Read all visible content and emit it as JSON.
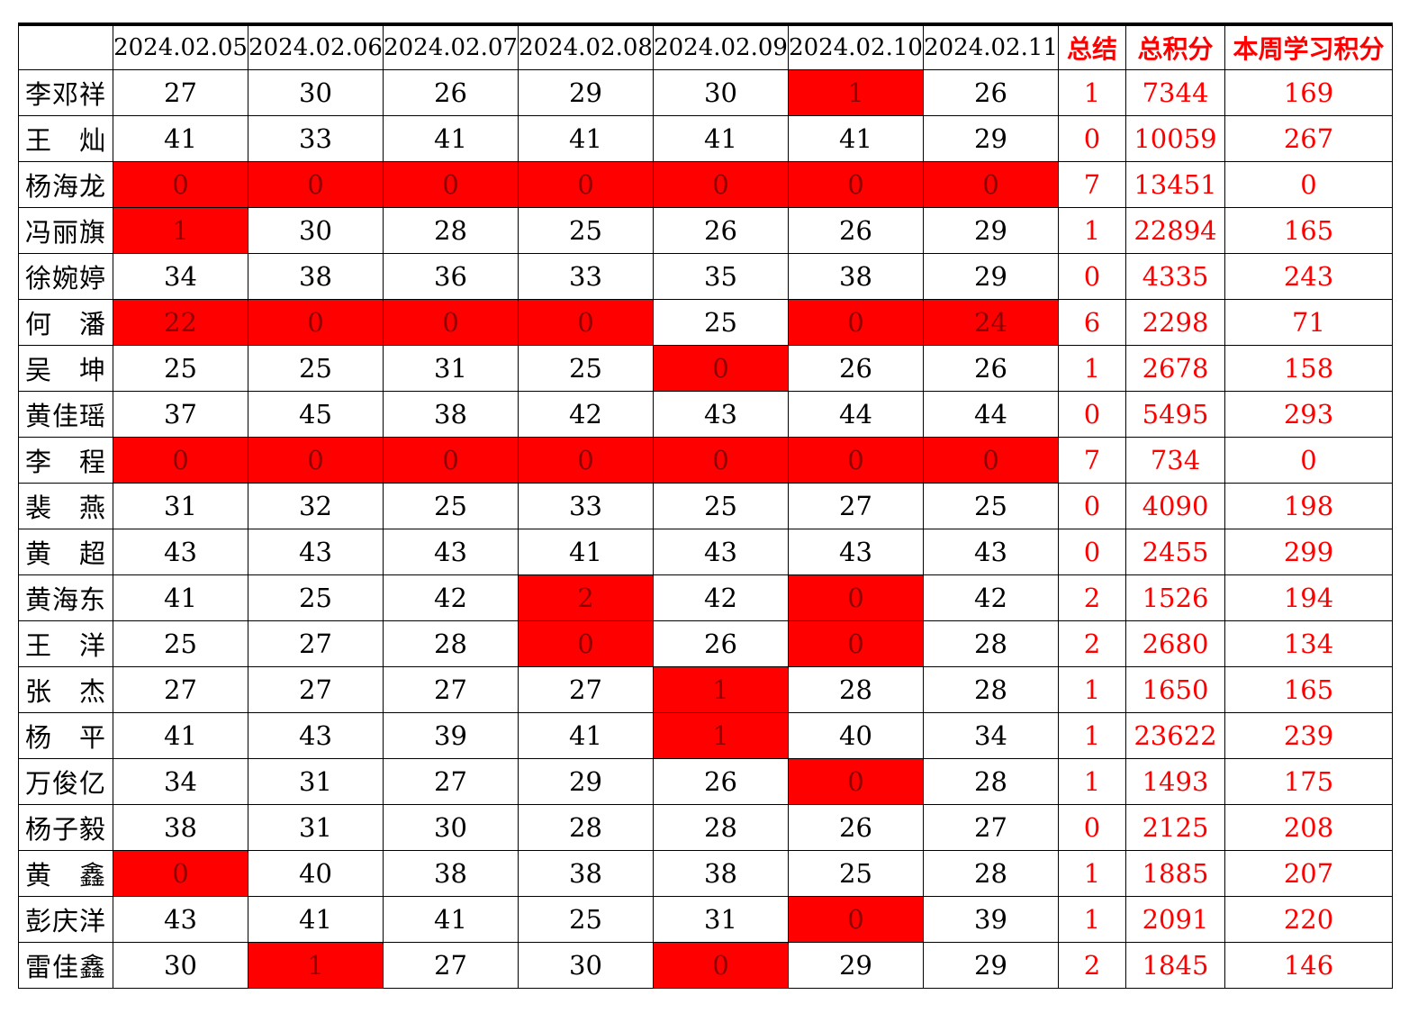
{
  "table": {
    "corner_label": "",
    "date_columns": [
      "2024.02.05",
      "2024.02.06",
      "2024.02.07",
      "2024.02.08",
      "2024.02.09",
      "2024.02.10",
      "2024.02.11"
    ],
    "summary_columns": [
      "总结",
      "总积分",
      "本周学习积分"
    ],
    "colors": {
      "highlight_bg": "#ff0000",
      "highlight_text": "#8b0000",
      "summary_text": "#ff0000",
      "body_text": "#000000",
      "grid": "#000000"
    },
    "rows": [
      {
        "name": "李邓祥",
        "daily": [
          27,
          30,
          26,
          29,
          30,
          1,
          26
        ],
        "highlight": [
          false,
          false,
          false,
          false,
          false,
          true,
          false
        ],
        "summary": 1,
        "total": 7344,
        "week": 169
      },
      {
        "name": "王　灿",
        "daily": [
          41,
          33,
          41,
          41,
          41,
          41,
          29
        ],
        "highlight": [
          false,
          false,
          false,
          false,
          false,
          false,
          false
        ],
        "summary": 0,
        "total": 10059,
        "week": 267
      },
      {
        "name": "杨海龙",
        "daily": [
          0,
          0,
          0,
          0,
          0,
          0,
          0
        ],
        "highlight": [
          true,
          true,
          true,
          true,
          true,
          true,
          true
        ],
        "summary": 7,
        "total": 13451,
        "week": 0
      },
      {
        "name": "冯丽旗",
        "daily": [
          1,
          30,
          28,
          25,
          26,
          26,
          29
        ],
        "highlight": [
          true,
          false,
          false,
          false,
          false,
          false,
          false
        ],
        "summary": 1,
        "total": 22894,
        "week": 165
      },
      {
        "name": "徐婉婷",
        "daily": [
          34,
          38,
          36,
          33,
          35,
          38,
          29
        ],
        "highlight": [
          false,
          false,
          false,
          false,
          false,
          false,
          false
        ],
        "summary": 0,
        "total": 4335,
        "week": 243
      },
      {
        "name": "何　潘",
        "daily": [
          22,
          0,
          0,
          0,
          25,
          0,
          24
        ],
        "highlight": [
          true,
          true,
          true,
          true,
          false,
          true,
          true
        ],
        "summary": 6,
        "total": 2298,
        "week": 71
      },
      {
        "name": "吴　坤",
        "daily": [
          25,
          25,
          31,
          25,
          0,
          26,
          26
        ],
        "highlight": [
          false,
          false,
          false,
          false,
          true,
          false,
          false
        ],
        "summary": 1,
        "total": 2678,
        "week": 158
      },
      {
        "name": "黄佳瑶",
        "daily": [
          37,
          45,
          38,
          42,
          43,
          44,
          44
        ],
        "highlight": [
          false,
          false,
          false,
          false,
          false,
          false,
          false
        ],
        "summary": 0,
        "total": 5495,
        "week": 293
      },
      {
        "name": "李　程",
        "daily": [
          0,
          0,
          0,
          0,
          0,
          0,
          0
        ],
        "highlight": [
          true,
          true,
          true,
          true,
          true,
          true,
          true
        ],
        "summary": 7,
        "total": 734,
        "week": 0
      },
      {
        "name": "裴　燕",
        "daily": [
          31,
          32,
          25,
          33,
          25,
          27,
          25
        ],
        "highlight": [
          false,
          false,
          false,
          false,
          false,
          false,
          false
        ],
        "summary": 0,
        "total": 4090,
        "week": 198
      },
      {
        "name": "黄　超",
        "daily": [
          43,
          43,
          43,
          41,
          43,
          43,
          43
        ],
        "highlight": [
          false,
          false,
          false,
          false,
          false,
          false,
          false
        ],
        "summary": 0,
        "total": 2455,
        "week": 299
      },
      {
        "name": "黄海东",
        "daily": [
          41,
          25,
          42,
          2,
          42,
          0,
          42
        ],
        "highlight": [
          false,
          false,
          false,
          true,
          false,
          true,
          false
        ],
        "summary": 2,
        "total": 1526,
        "week": 194
      },
      {
        "name": "王　洋",
        "daily": [
          25,
          27,
          28,
          0,
          26,
          0,
          28
        ],
        "highlight": [
          false,
          false,
          false,
          true,
          false,
          true,
          false
        ],
        "summary": 2,
        "total": 2680,
        "week": 134
      },
      {
        "name": "张　杰",
        "daily": [
          27,
          27,
          27,
          27,
          1,
          28,
          28
        ],
        "highlight": [
          false,
          false,
          false,
          false,
          true,
          false,
          false
        ],
        "summary": 1,
        "total": 1650,
        "week": 165
      },
      {
        "name": "杨　平",
        "daily": [
          41,
          43,
          39,
          41,
          1,
          40,
          34
        ],
        "highlight": [
          false,
          false,
          false,
          false,
          true,
          false,
          false
        ],
        "summary": 1,
        "total": 23622,
        "week": 239
      },
      {
        "name": "万俊亿",
        "daily": [
          34,
          31,
          27,
          29,
          26,
          0,
          28
        ],
        "highlight": [
          false,
          false,
          false,
          false,
          false,
          true,
          false
        ],
        "summary": 1,
        "total": 1493,
        "week": 175
      },
      {
        "name": "杨子毅",
        "daily": [
          38,
          31,
          30,
          28,
          28,
          26,
          27
        ],
        "highlight": [
          false,
          false,
          false,
          false,
          false,
          false,
          false
        ],
        "summary": 0,
        "total": 2125,
        "week": 208
      },
      {
        "name": "黄　鑫",
        "daily": [
          0,
          40,
          38,
          38,
          38,
          25,
          28
        ],
        "highlight": [
          true,
          false,
          false,
          false,
          false,
          false,
          false
        ],
        "summary": 1,
        "total": 1885,
        "week": 207
      },
      {
        "name": "彭庆洋",
        "daily": [
          43,
          41,
          41,
          25,
          31,
          0,
          39
        ],
        "highlight": [
          false,
          false,
          false,
          false,
          false,
          true,
          false
        ],
        "summary": 1,
        "total": 2091,
        "week": 220
      },
      {
        "name": "雷佳鑫",
        "daily": [
          30,
          1,
          27,
          30,
          0,
          29,
          29
        ],
        "highlight": [
          false,
          true,
          false,
          false,
          true,
          false,
          false
        ],
        "summary": 2,
        "total": 1845,
        "week": 146
      }
    ]
  }
}
